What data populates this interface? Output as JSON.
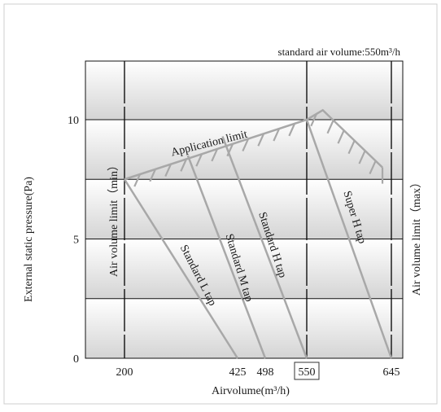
{
  "chart_data": {
    "type": "line",
    "title": "standard air volume:550m³/h",
    "xlabel": "Airvolume(m³/h)",
    "ylabel": "External static pressure(Pa)",
    "x_ticks": [
      "200",
      "425",
      "498",
      "550",
      "645"
    ],
    "x_boxed_tick": "550",
    "y_ticks": [
      "0",
      "5",
      "10"
    ],
    "ylim": [
      0,
      10
    ],
    "grid": true,
    "application_limit": {
      "label": "Application limit",
      "points": [
        [
          200,
          7.5
        ],
        [
          550,
          10
        ],
        [
          568,
          10.4
        ],
        [
          635,
          8
        ]
      ]
    },
    "series": [
      {
        "name": "Standard L tap",
        "points": [
          [
            200,
            7.5
          ],
          [
            425,
            0
          ]
        ]
      },
      {
        "name": "Standard M tap",
        "points": [
          [
            326,
            8.5
          ],
          [
            498,
            0
          ]
        ]
      },
      {
        "name": "Standard H tap",
        "points": [
          [
            395,
            9.3
          ],
          [
            550,
            0
          ]
        ]
      },
      {
        "name": "Super H tap",
        "points": [
          [
            550,
            10
          ],
          [
            645,
            0
          ]
        ]
      }
    ],
    "limit_labels": {
      "min": "Air volume limit（min）",
      "max": "Air volume limit（max）"
    },
    "colors": {
      "curve": "#a8a8a8",
      "grid": "#111111",
      "band_light": "#ffffff",
      "band_dark": "#d6d6d6"
    }
  }
}
